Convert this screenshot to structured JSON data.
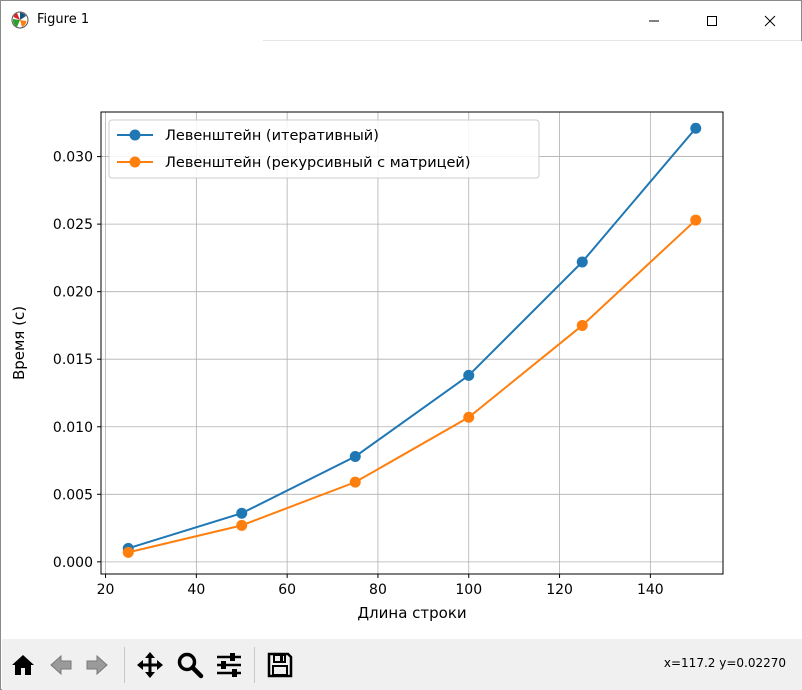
{
  "window": {
    "title": "Figure 1",
    "icon": "matplotlib-icon"
  },
  "window_controls": {
    "minimize": "minimize-icon",
    "maximize": "maximize-icon",
    "close": "close-icon"
  },
  "toolbar": {
    "buttons": [
      {
        "name": "home-button",
        "icon": "home-icon"
      },
      {
        "name": "back-button",
        "icon": "back-arrow-icon"
      },
      {
        "name": "forward-button",
        "icon": "forward-arrow-icon"
      },
      {
        "name": "pan-button",
        "icon": "move-icon"
      },
      {
        "name": "zoom-button",
        "icon": "magnifier-icon"
      },
      {
        "name": "configure-subplots-button",
        "icon": "sliders-icon"
      },
      {
        "name": "save-button",
        "icon": "floppy-icon"
      }
    ],
    "coords": "x=117.2 y=0.02270"
  },
  "chart_data": {
    "type": "line",
    "title": "",
    "xlabel": "Длина строки",
    "ylabel": "Время (с)",
    "xlim": [
      19,
      156
    ],
    "ylim": [
      -0.0009,
      0.0333
    ],
    "xticks": [
      20,
      40,
      60,
      80,
      100,
      120,
      140
    ],
    "xtick_labels": [
      "20",
      "40",
      "60",
      "80",
      "100",
      "120",
      "140"
    ],
    "yticks": [
      0.0,
      0.005,
      0.01,
      0.015,
      0.02,
      0.025,
      0.03
    ],
    "ytick_labels": [
      "0.000",
      "0.005",
      "0.010",
      "0.015",
      "0.020",
      "0.025",
      "0.030"
    ],
    "grid": true,
    "legend": "upper-left",
    "x": [
      25,
      50,
      75,
      100,
      125,
      150
    ],
    "series": [
      {
        "name": "Левенштейн (итеративный)",
        "color": "#1f77b4",
        "marker": "o",
        "values": [
          0.001,
          0.0036,
          0.0078,
          0.0138,
          0.0222,
          0.0321
        ]
      },
      {
        "name": "Левенштейн (рекурсивный с матрицей)",
        "color": "#ff7f0e",
        "marker": "o",
        "values": [
          0.0007,
          0.0027,
          0.0059,
          0.0107,
          0.0175,
          0.0253
        ]
      }
    ]
  }
}
